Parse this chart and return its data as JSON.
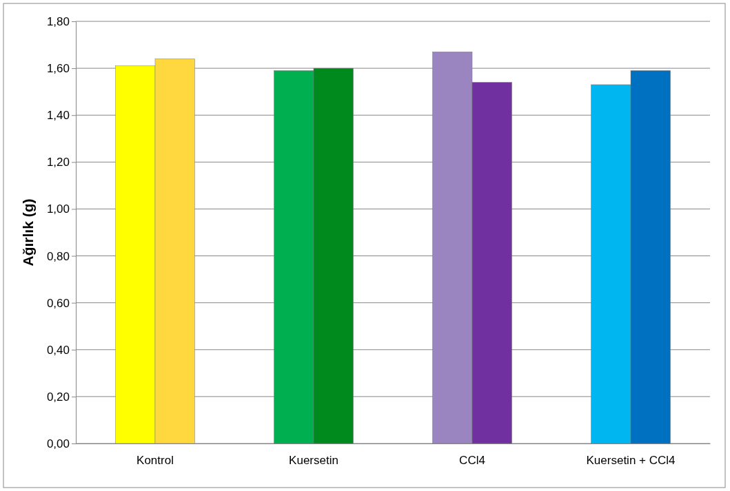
{
  "chart_data": {
    "type": "bar",
    "ylabel": "Ağırlık (g)",
    "categories": [
      "Kontrol",
      "Kuersetin",
      "CCl4",
      "Kuersetin + CCl4"
    ],
    "series": [
      {
        "colors": [
          "#ffff00",
          "#00b050",
          "#9b85c0",
          "#00b6f0"
        ],
        "values": [
          1.61,
          1.59,
          1.67,
          1.53
        ]
      },
      {
        "colors": [
          "#ffd840",
          "#008a1e",
          "#7030a0",
          "#0070c0"
        ],
        "values": [
          1.64,
          1.6,
          1.54,
          1.59
        ]
      }
    ],
    "ylim": [
      0,
      1.8
    ],
    "yticks": [
      {
        "value": 0,
        "label": "0,00"
      },
      {
        "value": 0.2,
        "label": "0,20"
      },
      {
        "value": 0.4,
        "label": "0,40"
      },
      {
        "value": 0.6,
        "label": "0,60"
      },
      {
        "value": 0.8,
        "label": "0,80"
      },
      {
        "value": 1,
        "label": "1,00"
      },
      {
        "value": 1.2,
        "label": "1,20"
      },
      {
        "value": 1.4,
        "label": "1,40"
      },
      {
        "value": 1.6,
        "label": "1,60"
      },
      {
        "value": 1.8,
        "label": "1,80"
      }
    ],
    "grid": "y"
  }
}
